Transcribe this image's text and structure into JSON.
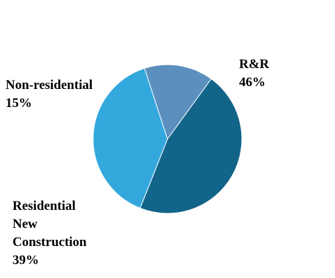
{
  "chart_data": {
    "type": "pie",
    "title": "",
    "slices": [
      {
        "label_lines": [
          "R&R"
        ],
        "percent_label": "46%",
        "value": 46,
        "color": "#136489"
      },
      {
        "label_lines": [
          "Residential",
          "New",
          "Construction"
        ],
        "percent_label": "39%",
        "value": 39,
        "color": "#33a8dc"
      },
      {
        "label_lines": [
          "Non-residential"
        ],
        "percent_label": "15%",
        "value": 15,
        "color": "#5b8fbd"
      }
    ],
    "legend": "none"
  }
}
